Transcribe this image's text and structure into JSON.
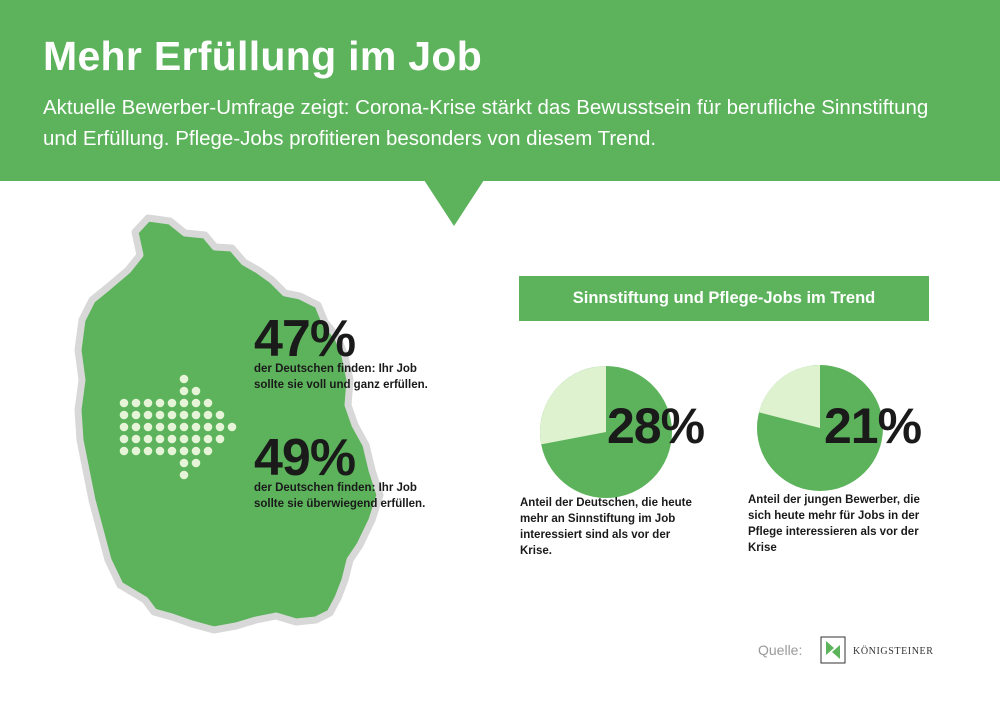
{
  "header": {
    "title": "Mehr Erfüllung im Job",
    "subtitle": "Aktuelle Bewerber-Umfrage zeigt: Corona-Krise stärkt das Bewusstsein für berufliche Sinnstiftung und Erfüllung. Pflege-Jobs profitieren besonders von diesem Trend."
  },
  "map_stats": [
    {
      "value": "47%",
      "text": "der Deutschen finden: Ihr Job sollte sie voll und ganz erfüllen."
    },
    {
      "value": "49%",
      "text": "der Deutschen finden: Ihr Job sollte sie überwiegend erfüllen."
    }
  ],
  "trend": {
    "heading": "Sinnstiftung und Pflege-Jobs im Trend",
    "items": [
      {
        "value": "28%",
        "share": 0.28,
        "text": "Anteil der Deutschen, die heute mehr an Sinnstiftung im Job interessiert sind als vor der Krise."
      },
      {
        "value": "21%",
        "share": 0.21,
        "text": "Anteil der jungen Bewerber, die sich heute mehr für Jobs in der Pflege interessieren als vor der Krise"
      }
    ]
  },
  "source": {
    "label": "Quelle:",
    "logo_text": "KÖNIGSTEINER"
  },
  "colors": {
    "green": "#5cb35b",
    "light_green": "#def2d0",
    "map_outline": "#d8d8d8",
    "dots": "#e6f4d8",
    "text": "#1a1a1a"
  },
  "icons": [
    "germany-map-icon",
    "dotted-arrow-icon",
    "koenigsteiner-logo-icon"
  ]
}
